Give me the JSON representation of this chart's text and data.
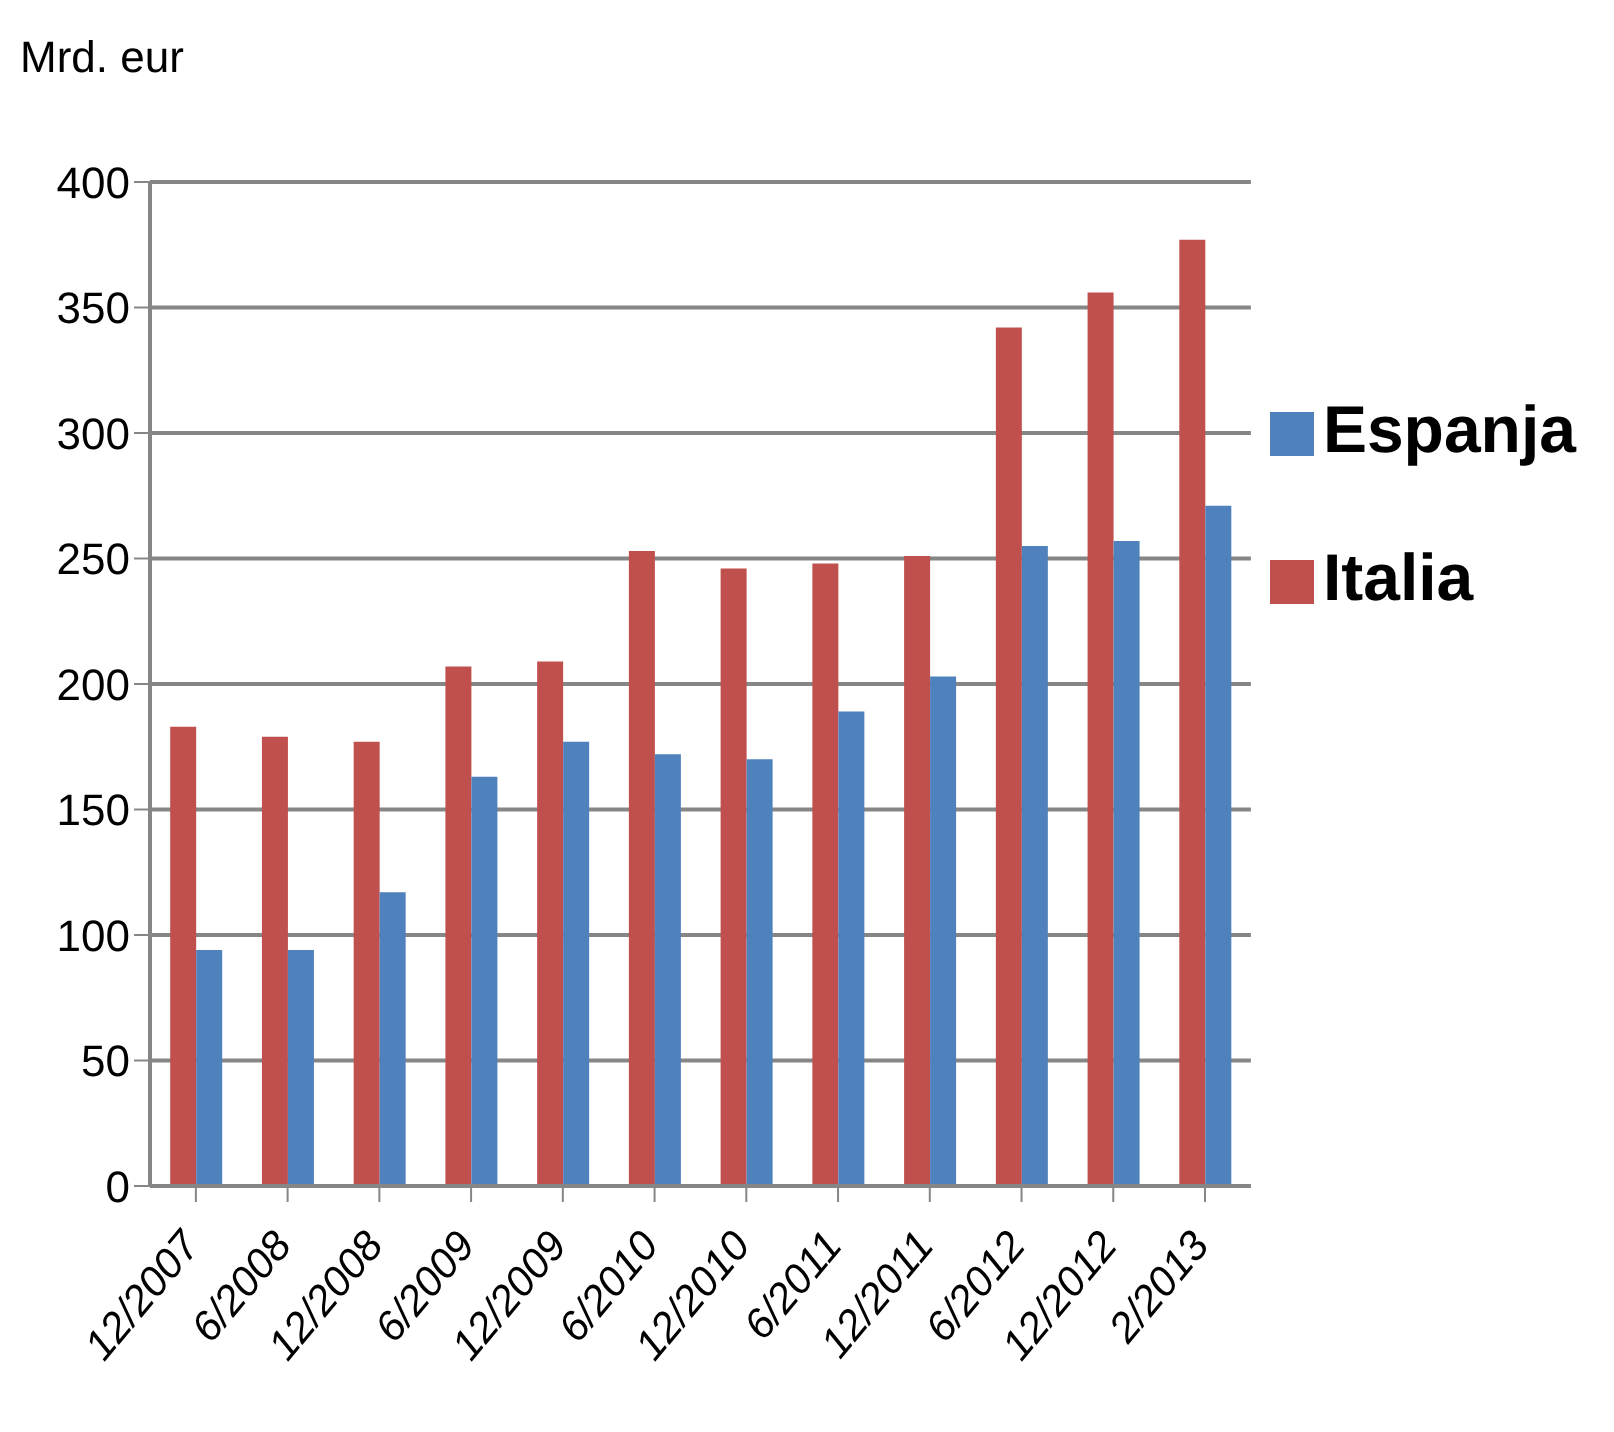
{
  "chart_data": {
    "type": "bar",
    "ylabel": "Mrd. eur",
    "categories": [
      "12/2007",
      "6/2008",
      "12/2008",
      "6/2009",
      "12/2009",
      "6/2010",
      "12/2010",
      "6/2011",
      "12/2011",
      "6/2012",
      "12/2012",
      "2/2013"
    ],
    "series": [
      {
        "name": "Italia",
        "color": "#c0504d",
        "values": [
          183,
          179,
          177,
          207,
          209,
          253,
          246,
          248,
          251,
          342,
          356,
          377
        ]
      },
      {
        "name": "Espanja",
        "color": "#4f81bd",
        "values": [
          94,
          94,
          117,
          163,
          177,
          172,
          170,
          189,
          203,
          255,
          257,
          271
        ]
      }
    ],
    "ylim": [
      0,
      400
    ],
    "yticks": [
      0,
      50,
      100,
      150,
      200,
      250,
      300,
      350,
      400
    ],
    "grid": "y",
    "legend": "right"
  }
}
